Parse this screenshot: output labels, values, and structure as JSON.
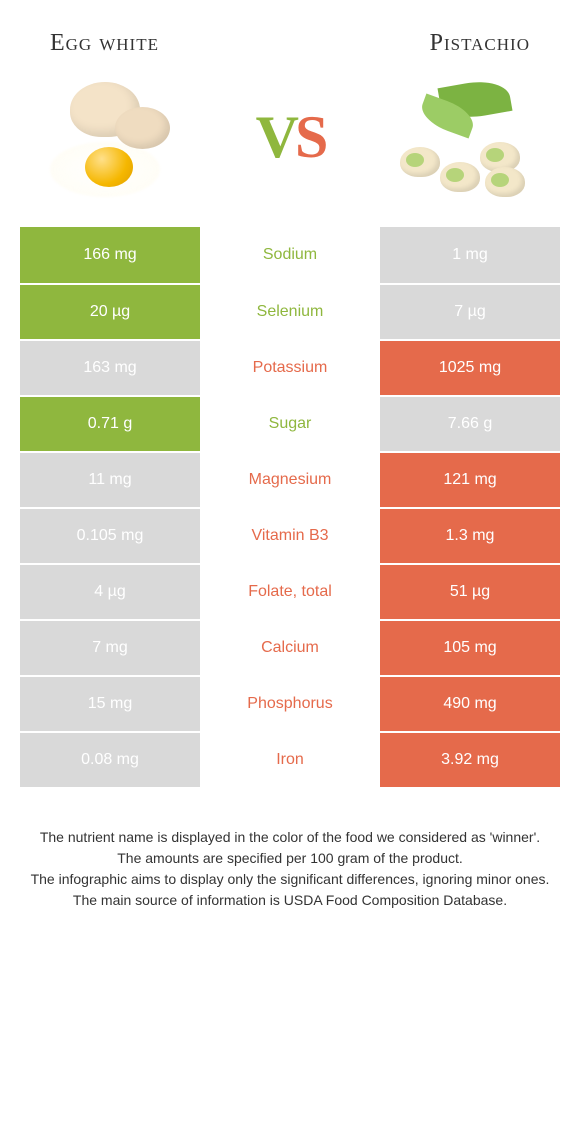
{
  "header": {
    "left_title": "Egg white",
    "right_title": "Pistachio",
    "vs_left": "V",
    "vs_right": "S"
  },
  "colors": {
    "left": "#8fb73e",
    "right": "#e56a4b",
    "row_bg_muted": "#d9d9d9",
    "text_dark": "#333333"
  },
  "table": {
    "rows": [
      {
        "label": "Sodium",
        "left": "166 mg",
        "right": "1 mg",
        "winner": "left"
      },
      {
        "label": "Selenium",
        "left": "20 µg",
        "right": "7 µg",
        "winner": "left"
      },
      {
        "label": "Potassium",
        "left": "163 mg",
        "right": "1025 mg",
        "winner": "right"
      },
      {
        "label": "Sugar",
        "left": "0.71 g",
        "right": "7.66 g",
        "winner": "left"
      },
      {
        "label": "Magnesium",
        "left": "11 mg",
        "right": "121 mg",
        "winner": "right"
      },
      {
        "label": "Vitamin B3",
        "left": "0.105 mg",
        "right": "1.3 mg",
        "winner": "right"
      },
      {
        "label": "Folate, total",
        "left": "4 µg",
        "right": "51 µg",
        "winner": "right"
      },
      {
        "label": "Calcium",
        "left": "7 mg",
        "right": "105 mg",
        "winner": "right"
      },
      {
        "label": "Phosphorus",
        "left": "15 mg",
        "right": "490 mg",
        "winner": "right"
      },
      {
        "label": "Iron",
        "left": "0.08 mg",
        "right": "3.92 mg",
        "winner": "right"
      }
    ]
  },
  "footer": {
    "line1": "The nutrient name is displayed in the color of the food we considered as 'winner'.",
    "line2": "The amounts are specified per 100 gram of the product.",
    "line3": "The infographic aims to display only the significant differences, ignoring minor ones.",
    "line4": "The main source of information is USDA Food Composition Database."
  }
}
